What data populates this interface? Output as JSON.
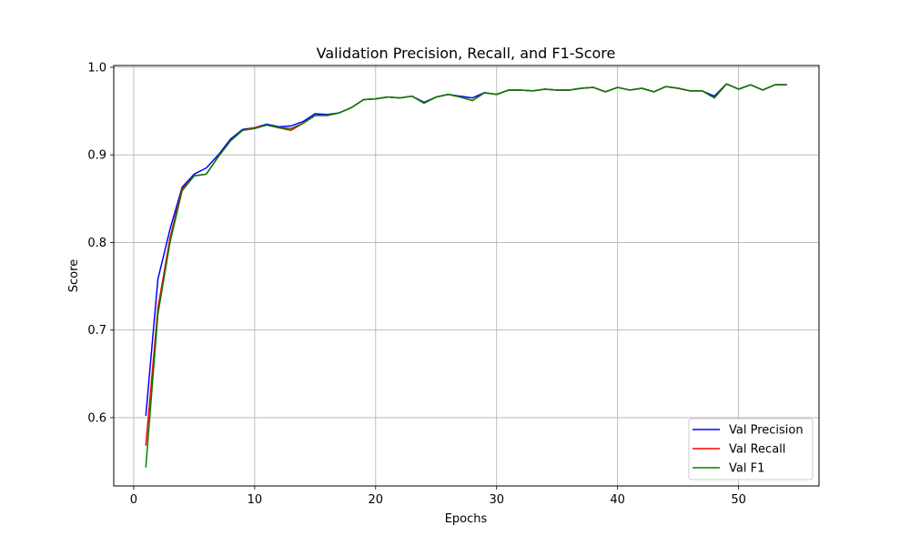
{
  "chart_data": {
    "type": "line",
    "title": "Validation Precision, Recall, and F1-Score",
    "xlabel": "Epochs",
    "ylabel": "Score",
    "xlim": [
      -1.65,
      56.65
    ],
    "ylim": [
      0.522,
      1.002
    ],
    "xticks": [
      0,
      10,
      20,
      30,
      40,
      50
    ],
    "yticks": [
      0.6,
      0.7,
      0.8,
      0.9,
      1.0
    ],
    "ytick_labels": [
      "0.6",
      "0.7",
      "0.8",
      "0.9",
      "1.0"
    ],
    "grid": true,
    "legend_position": "bottom-right",
    "x": [
      1,
      2,
      3,
      4,
      5,
      6,
      7,
      8,
      9,
      10,
      11,
      12,
      13,
      14,
      15,
      16,
      17,
      18,
      19,
      20,
      21,
      22,
      23,
      24,
      25,
      26,
      27,
      28,
      29,
      30,
      31,
      32,
      33,
      34,
      35,
      36,
      37,
      38,
      39,
      40,
      41,
      42,
      43,
      44,
      45,
      46,
      47,
      48,
      49,
      50,
      51,
      52,
      53,
      54
    ],
    "series": [
      {
        "name": "Val Precision",
        "color": "#0000ff",
        "values": [
          0.602,
          0.758,
          0.815,
          0.863,
          0.878,
          0.885,
          0.9,
          0.918,
          0.929,
          0.931,
          0.935,
          0.932,
          0.933,
          0.938,
          0.947,
          0.946,
          0.948,
          0.954,
          0.963,
          0.964,
          0.966,
          0.965,
          0.967,
          0.96,
          0.966,
          0.969,
          0.967,
          0.965,
          0.971,
          0.969,
          0.974,
          0.974,
          0.973,
          0.975,
          0.974,
          0.974,
          0.976,
          0.977,
          0.972,
          0.977,
          0.974,
          0.976,
          0.972,
          0.978,
          0.976,
          0.973,
          0.973,
          0.967,
          0.981,
          0.975,
          0.98,
          0.974,
          0.98,
          0.98
        ]
      },
      {
        "name": "Val Recall",
        "color": "#ff0000",
        "values": [
          0.568,
          0.725,
          0.805,
          0.861,
          0.876,
          0.878,
          0.898,
          0.916,
          0.928,
          0.931,
          0.934,
          0.931,
          0.928,
          0.936,
          0.945,
          0.945,
          0.948,
          0.954,
          0.963,
          0.964,
          0.966,
          0.965,
          0.967,
          0.959,
          0.966,
          0.969,
          0.966,
          0.962,
          0.971,
          0.969,
          0.974,
          0.974,
          0.973,
          0.975,
          0.974,
          0.974,
          0.976,
          0.977,
          0.972,
          0.977,
          0.974,
          0.976,
          0.972,
          0.978,
          0.976,
          0.973,
          0.973,
          0.965,
          0.981,
          0.975,
          0.98,
          0.974,
          0.98,
          0.98
        ]
      },
      {
        "name": "Val F1",
        "color": "#008000",
        "values": [
          0.543,
          0.718,
          0.8,
          0.859,
          0.876,
          0.878,
          0.898,
          0.916,
          0.928,
          0.93,
          0.934,
          0.931,
          0.93,
          0.936,
          0.945,
          0.945,
          0.948,
          0.954,
          0.963,
          0.964,
          0.966,
          0.965,
          0.967,
          0.959,
          0.966,
          0.969,
          0.966,
          0.962,
          0.971,
          0.969,
          0.974,
          0.974,
          0.973,
          0.975,
          0.974,
          0.974,
          0.976,
          0.977,
          0.972,
          0.977,
          0.974,
          0.976,
          0.972,
          0.978,
          0.976,
          0.973,
          0.973,
          0.965,
          0.981,
          0.975,
          0.98,
          0.974,
          0.98,
          0.98
        ]
      }
    ]
  }
}
